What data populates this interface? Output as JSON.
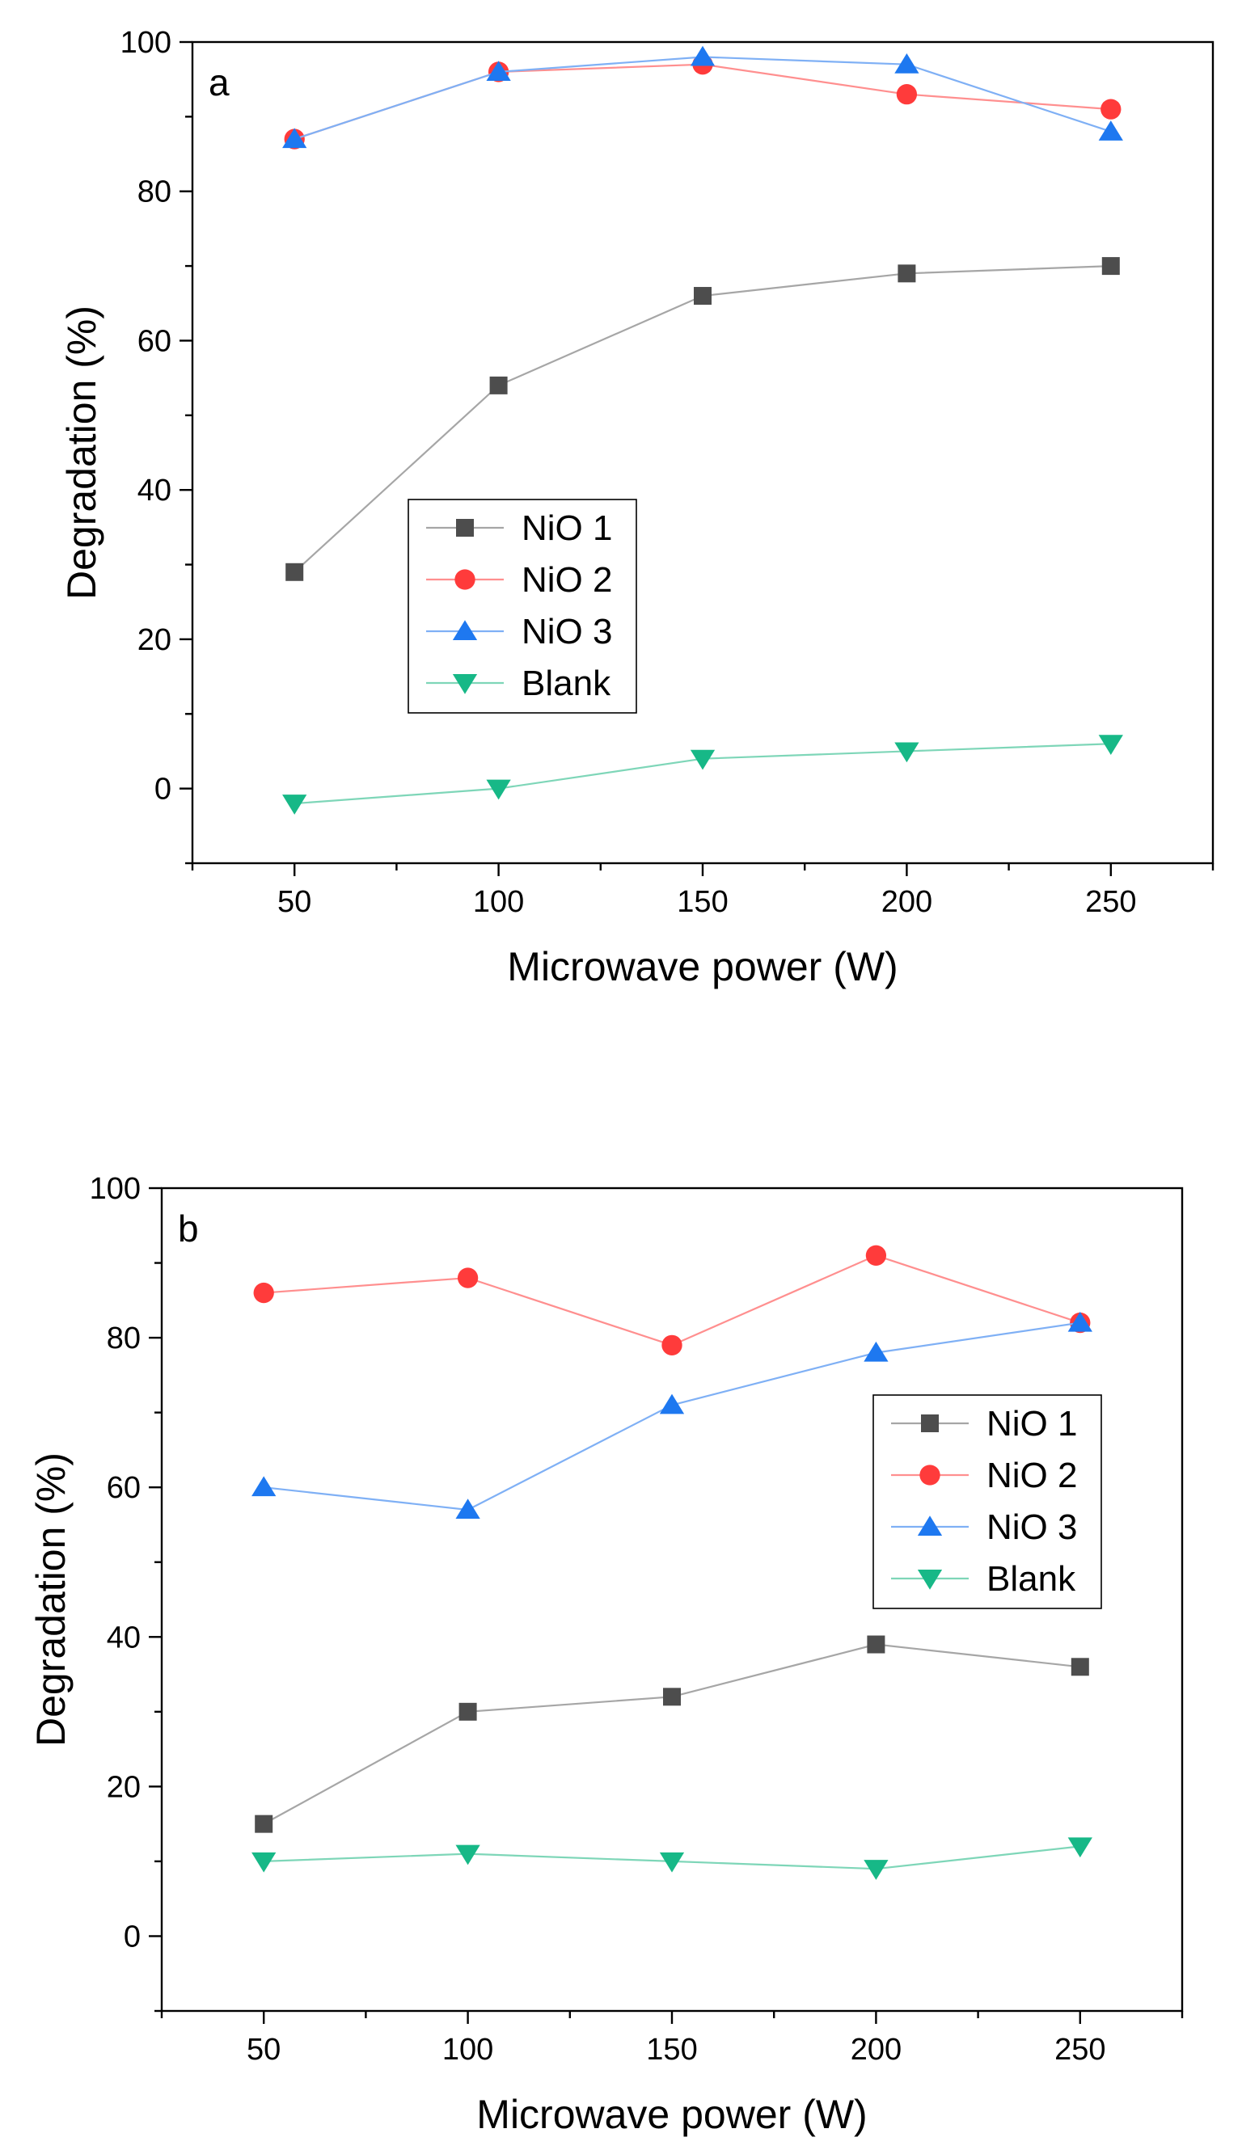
{
  "figure": {
    "legend_entries": [
      "NiO 1",
      "NiO 2",
      "NiO 3",
      "Blank"
    ]
  },
  "chart_data": [
    {
      "type": "line",
      "panel_label": "a",
      "title": "",
      "xlabel": "Microwave power (W)",
      "ylabel": "Degradation (%)",
      "xlim": [
        25,
        275
      ],
      "ylim": [
        -10,
        100
      ],
      "x": [
        50,
        100,
        150,
        200,
        250
      ],
      "xticks": [
        "50",
        "100",
        "150",
        "200",
        "250"
      ],
      "yticks": [
        "0",
        "20",
        "40",
        "60",
        "80",
        "100"
      ],
      "legend_position": "center-left",
      "series": [
        {
          "name": "NiO 1",
          "color": "#4d4d4d",
          "line_color": "#a6a6a6",
          "marker": "square",
          "values": [
            29,
            54,
            66,
            69,
            70
          ]
        },
        {
          "name": "NiO 2",
          "color": "#ff3b3b",
          "line_color": "#ff8f8f",
          "marker": "circle",
          "values": [
            87,
            96,
            97,
            93,
            91
          ]
        },
        {
          "name": "NiO 3",
          "color": "#1e78f0",
          "line_color": "#7fb0f5",
          "marker": "triangle-up",
          "values": [
            87,
            96,
            98,
            97,
            88
          ]
        },
        {
          "name": "Blank",
          "color": "#17b887",
          "line_color": "#7ed6b8",
          "marker": "triangle-down",
          "values": [
            -2,
            0,
            4,
            5,
            6
          ]
        }
      ]
    },
    {
      "type": "line",
      "panel_label": "b",
      "title": "",
      "xlabel": "Microwave power (W)",
      "ylabel": "Degradation (%)",
      "xlim": [
        25,
        275
      ],
      "ylim": [
        -10,
        100
      ],
      "x": [
        50,
        100,
        150,
        200,
        250
      ],
      "xticks": [
        "50",
        "100",
        "150",
        "200",
        "250"
      ],
      "yticks": [
        "0",
        "20",
        "40",
        "60",
        "80",
        "100"
      ],
      "legend_position": "top-right",
      "series": [
        {
          "name": "NiO 1",
          "color": "#4d4d4d",
          "line_color": "#a6a6a6",
          "marker": "square",
          "values": [
            15,
            30,
            32,
            39,
            36
          ]
        },
        {
          "name": "NiO 2",
          "color": "#ff3b3b",
          "line_color": "#ff8f8f",
          "marker": "circle",
          "values": [
            86,
            88,
            79,
            91,
            82
          ]
        },
        {
          "name": "NiO 3",
          "color": "#1e78f0",
          "line_color": "#7fb0f5",
          "marker": "triangle-up",
          "values": [
            60,
            57,
            71,
            78,
            82
          ]
        },
        {
          "name": "Blank",
          "color": "#17b887",
          "line_color": "#7ed6b8",
          "marker": "triangle-down",
          "values": [
            10,
            11,
            10,
            9,
            12
          ]
        }
      ]
    }
  ]
}
